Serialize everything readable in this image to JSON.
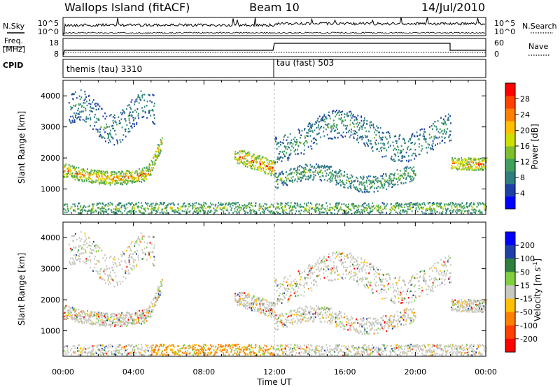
{
  "header": {
    "station": "Wallops Island (fitACF)",
    "beam": "Beam 10",
    "date": "14/Jul/2010"
  },
  "top_panels": {
    "nsky_label": "N.Sky",
    "nsearch_label": "N.Search",
    "noise_ticks": [
      "10^5",
      "10^0"
    ],
    "freq_label_line1": "Freq.",
    "freq_label_line2": "[MHz]",
    "freq_ticks": [
      "18",
      "8"
    ],
    "nave_label": "Nave",
    "nave_ticks": [
      "60",
      "0"
    ],
    "cpid_label": "CPID",
    "cpid_segments": [
      {
        "label": "themis (tau) 3310",
        "start_hour": 0,
        "end_hour": 12
      },
      {
        "label": "tau (fast) 503",
        "start_hour": 12,
        "end_hour": 24
      }
    ]
  },
  "chart_data": [
    {
      "type": "heatmap",
      "panel": "power",
      "ylabel": "Slant Range [km]",
      "xlabel": "Time UT",
      "xlim": [
        0,
        24
      ],
      "ylim": [
        180,
        4500
      ],
      "x_ticks": [
        "00:00",
        "04:00",
        "08:00",
        "12:00",
        "16:00",
        "20:00",
        "00:00"
      ],
      "y_ticks": [
        1000,
        2000,
        3000,
        4000
      ],
      "colorbar": {
        "label": "Power [dB]",
        "ticks": [
          "4",
          "8",
          "12",
          "16",
          "20",
          "24",
          "28"
        ],
        "range": [
          0,
          30
        ],
        "colors": [
          "#0000ff",
          "#1f3fa8",
          "#2f7f7f",
          "#3f9f5f",
          "#7fbf2f",
          "#cfdf00",
          "#ffbf00",
          "#ff8000",
          "#ff4000",
          "#ff0000"
        ]
      },
      "echo_regions": [
        {
          "name": "evening-arc",
          "x_start": 0.0,
          "x_end": 5.6,
          "range_center_km": 1700,
          "power_db": 18
        },
        {
          "name": "early-high",
          "x_start": 0.4,
          "x_end": 5.0,
          "range_center_km": 3400,
          "power_db": 8
        },
        {
          "name": "pre-midnight",
          "x_start": 10.0,
          "x_end": 12.0,
          "range_center_km": 1800,
          "power_db": 20
        },
        {
          "name": "post-midnight-low",
          "x_start": 12.0,
          "x_end": 20.0,
          "range_center_km": 1500,
          "power_db": 12
        },
        {
          "name": "post-midnight-high",
          "x_start": 12.0,
          "x_end": 22.0,
          "range_center_km": 2900,
          "power_db": 10
        },
        {
          "name": "dawn",
          "x_start": 22.0,
          "x_end": 24.0,
          "range_center_km": 1800,
          "power_db": 20
        },
        {
          "name": "near-range",
          "x_start": 0.0,
          "x_end": 24.0,
          "range_center_km": 300,
          "power_db": 14
        }
      ]
    },
    {
      "type": "heatmap",
      "panel": "velocity",
      "ylabel": "Slant Range [km]",
      "xlabel": "Time UT",
      "xlim": [
        0,
        24
      ],
      "ylim": [
        180,
        4500
      ],
      "x_ticks": [
        "00:00",
        "04:00",
        "08:00",
        "12:00",
        "16:00",
        "20:00",
        "00:00"
      ],
      "y_ticks": [
        1000,
        2000,
        3000,
        4000
      ],
      "colorbar": {
        "label_main": "Velocity [m s",
        "label_sup": "-1",
        "label_end": "]",
        "ticks": [
          "200",
          "100",
          "50",
          "15",
          "-15",
          "-50",
          "-100",
          "-200"
        ],
        "colors": [
          "#0000ff",
          "#1f3fa8",
          "#2f7f3f",
          "#7fcf3f",
          "#c8c8c0",
          "#ffc000",
          "#ff8000",
          "#ff4000",
          "#ff0000"
        ]
      }
    }
  ]
}
